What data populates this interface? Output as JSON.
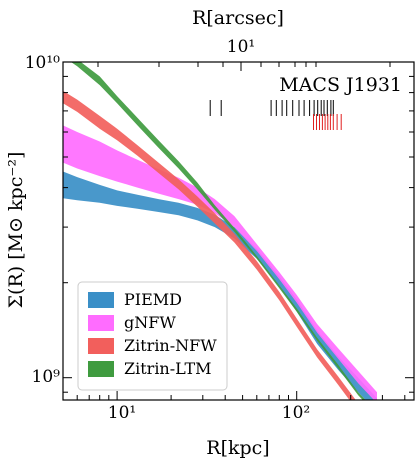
{
  "chart_data": {
    "type": "area",
    "title": "",
    "xlabel": "R[kpc]",
    "ylabel": "Σ(R) [M⊙ kpc⁻²]",
    "top_xlabel": "R[arcsec]",
    "xscale": "log",
    "yscale": "log",
    "xlim": [
      5,
      450
    ],
    "ylim": [
      850000000,
      10000000000
    ],
    "x_tick_labels": [
      "10¹",
      "10²"
    ],
    "y_tick_labels": [
      "10⁹",
      "10¹⁰"
    ],
    "top_tick_labels": [
      "10¹"
    ],
    "annotation": "MACS J1931",
    "legend_position": "bottom-left",
    "series": [
      {
        "name": "PIEMD",
        "color": "#3a8fc7",
        "x": [
          5,
          6,
          8,
          10,
          13,
          17,
          22,
          28,
          35,
          45,
          60,
          80,
          100,
          130,
          170,
          220,
          280
        ],
        "y_lower": [
          3700000000,
          3650000000,
          3580000000,
          3500000000,
          3430000000,
          3350000000,
          3270000000,
          3150000000,
          3000000000,
          2760000000,
          2380000000,
          1950000000,
          1620000000,
          1280000000,
          1060000000,
          900000000,
          780000000
        ],
        "y_upper": [
          4500000000,
          4320000000,
          4080000000,
          3920000000,
          3800000000,
          3680000000,
          3580000000,
          3450000000,
          3280000000,
          3000000000,
          2560000000,
          2090000000,
          1770000000,
          1410000000,
          1170000000,
          1000000000,
          860000000
        ]
      },
      {
        "name": "gNFW",
        "color": "#ff6cff",
        "x": [
          5,
          6,
          8,
          10,
          13,
          17,
          22,
          28,
          35,
          45,
          60,
          80,
          100,
          130,
          170,
          220,
          280
        ],
        "y_lower": [
          4800000000,
          4600000000,
          4350000000,
          4180000000,
          4000000000,
          3830000000,
          3680000000,
          3530000000,
          3320000000,
          3000000000,
          2520000000,
          2050000000,
          1730000000,
          1390000000,
          1150000000,
          960000000,
          830000000
        ],
        "y_upper": [
          6300000000,
          6000000000,
          5600000000,
          5250000000,
          4900000000,
          4580000000,
          4300000000,
          4000000000,
          3680000000,
          3250000000,
          2650000000,
          2160000000,
          1830000000,
          1480000000,
          1240000000,
          1050000000,
          900000000
        ]
      },
      {
        "name": "Zitrin-NFW",
        "color": "#f25f5c",
        "x": [
          5,
          6,
          8,
          10,
          13,
          17,
          22,
          28,
          35,
          45,
          60,
          80,
          100,
          130,
          170,
          220,
          280
        ],
        "y_lower": [
          7400000000,
          6950000000,
          6150000000,
          5650000000,
          5050000000,
          4450000000,
          3950000000,
          3480000000,
          3080000000,
          2680000000,
          2200000000,
          1760000000,
          1450000000,
          1160000000,
          950000000,
          780000000,
          650000000
        ],
        "y_upper": [
          8100000000,
          7600000000,
          6750000000,
          6150000000,
          5450000000,
          4800000000,
          4250000000,
          3750000000,
          3320000000,
          2860000000,
          2340000000,
          1870000000,
          1540000000,
          1230000000,
          1010000000,
          830000000,
          700000000
        ]
      },
      {
        "name": "Zitrin-LTM",
        "color": "#3f9b3f",
        "x": [
          5,
          6,
          8,
          10,
          13,
          17,
          22,
          28,
          35,
          45,
          60,
          80,
          100,
          130,
          170,
          220,
          280
        ],
        "y_lower": [
          10400000000,
          9700000000,
          8450000000,
          7400000000,
          6300000000,
          5350000000,
          4600000000,
          3950000000,
          3400000000,
          2900000000,
          2380000000,
          1920000000,
          1620000000,
          1310000000,
          1070000000,
          880000000,
          760000000
        ],
        "y_upper": [
          11000000000,
          10200000000,
          9000000000,
          7800000000,
          6650000000,
          5650000000,
          4850000000,
          4150000000,
          3520000000,
          2980000000,
          2430000000,
          1960000000,
          1660000000,
          1340000000,
          1100000000,
          900000000,
          780000000
        ]
      }
    ],
    "marker_rows": [
      {
        "color": "#000000",
        "x": [
          33,
          38,
          72,
          77,
          83,
          88,
          95,
          103,
          110,
          118,
          125,
          131,
          137,
          142,
          148,
          155,
          160
        ]
      },
      {
        "color": "#e02020",
        "x": [
          124,
          129,
          134,
          139,
          144,
          149,
          154,
          160,
          168,
          177
        ]
      }
    ]
  }
}
